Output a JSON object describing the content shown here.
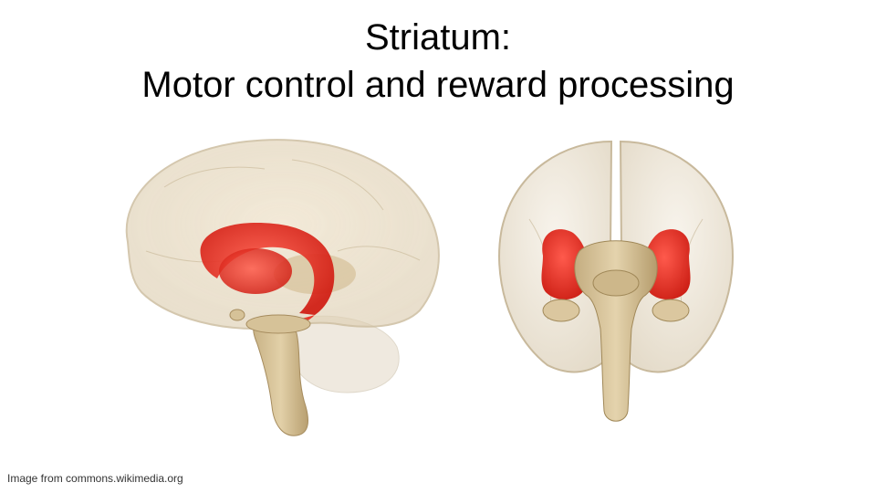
{
  "slide": {
    "title_line1": "Striatum:",
    "title_line2": "Motor control and reward processing",
    "credit": "Image from commons.wikimedia.org"
  },
  "figures": {
    "left": "sagittal-brain-view",
    "right": "coronal-brain-view"
  },
  "colors": {
    "background": "#ffffff",
    "brain_tissue": "#e9dcc4",
    "brainstem": "#d8c49a",
    "striatum": "#e8281c",
    "text": "#000000"
  }
}
